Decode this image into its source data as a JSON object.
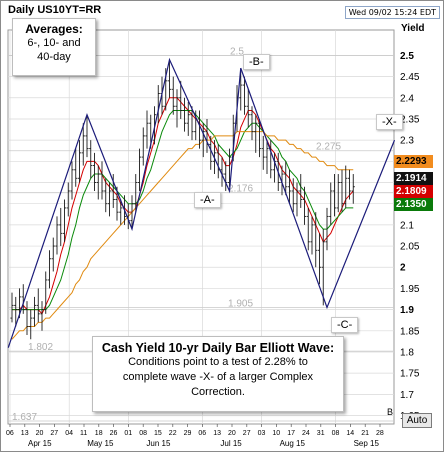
{
  "header": {
    "title": "Daily US10YT=RR",
    "date": "Wed 09/02 15:24 EDT"
  },
  "averages_box": {
    "title": "Averages:",
    "line1": "6-, 10- and",
    "line2": "40-day"
  },
  "note_box": {
    "title": "Cash Yield 10-yr Daily Bar Elliott Wave:",
    "line1": "Conditions point to a test of 2.28% to",
    "line2": "complete wave -X- of a larger Complex",
    "line3": "Correction."
  },
  "wave_labels": {
    "A": "-A-",
    "B": "-B-",
    "C": "-C-",
    "X": "-X-"
  },
  "level_labels": {
    "l25": "2.5",
    "l2275": "2.275",
    "l2176": "2.176",
    "l1905": "1.905",
    "l1802": "1.802",
    "l1637": "1.637"
  },
  "axis": {
    "y_title": "Yield",
    "auto_button": "Auto",
    "b_marker": "B"
  },
  "price_tags": [
    {
      "value": "2.2293",
      "bg": "#f28c1e",
      "fg": "#000000"
    },
    {
      "value": "2.1914",
      "bg": "#111111",
      "fg": "#ffffff"
    },
    {
      "value": "2.1809",
      "bg": "#d40000",
      "fg": "#ffffff"
    },
    {
      "value": "2.1350",
      "bg": "#0a7a0a",
      "fg": "#ffffff"
    }
  ],
  "colors": {
    "price_bars": "#1a1a1a",
    "wave_lines": "#1c1c7a",
    "ma6": "#d40000",
    "ma10": "#0a8a0a",
    "ma40": "#e08a10",
    "grid": "#d9d9d9"
  },
  "chart_data": {
    "type": "bar",
    "description_units": "10-yr yield, percent",
    "ylim": [
      1.63,
      2.56
    ],
    "y_ticks": [
      "2.5",
      "2.45",
      "2.4",
      "2.35",
      "2.3",
      "2.25",
      "2.2",
      "2.15",
      "2.1",
      "2.05",
      "2",
      "1.95",
      "1.9",
      "1.85",
      "1.8",
      "1.75",
      "1.7",
      "1.65"
    ],
    "x_day_ticks": [
      "06",
      "13",
      "20",
      "27",
      "04",
      "11",
      "18",
      "26",
      "01",
      "08",
      "15",
      "22",
      "29",
      "06",
      "13",
      "20",
      "27",
      "03",
      "10",
      "17",
      "24",
      "31",
      "08",
      "14",
      "21",
      "28"
    ],
    "x_month_labels": [
      "Apr 15",
      "May 15",
      "Jun 15",
      "Jul 15",
      "Aug 15",
      "Sep 15"
    ],
    "wave_path_points": [
      {
        "bar": -1,
        "y": 1.81
      },
      {
        "bar": 20,
        "y": 2.36
      },
      {
        "bar": 32,
        "y": 2.09
      },
      {
        "bar": 42,
        "y": 2.49
      },
      {
        "bar": 58,
        "y": 2.18
      },
      {
        "bar": 61,
        "y": 2.47
      },
      {
        "bar": 84,
        "y": 1.905
      },
      {
        "bar": 102,
        "y": 2.3
      }
    ],
    "ohlc_bars": [
      [
        1.88,
        1.94,
        1.87,
        1.91
      ],
      [
        1.91,
        1.93,
        1.86,
        1.9
      ],
      [
        1.9,
        1.95,
        1.88,
        1.93
      ],
      [
        1.93,
        1.96,
        1.89,
        1.9
      ],
      [
        1.9,
        1.92,
        1.84,
        1.86
      ],
      [
        1.86,
        1.9,
        1.83,
        1.88
      ],
      [
        1.88,
        1.93,
        1.86,
        1.91
      ],
      [
        1.91,
        1.95,
        1.87,
        1.89
      ],
      [
        1.89,
        1.92,
        1.85,
        1.9
      ],
      [
        1.9,
        1.99,
        1.89,
        1.97
      ],
      [
        1.97,
        2.04,
        1.95,
        2.02
      ],
      [
        2.02,
        2.07,
        1.99,
        2.05
      ],
      [
        2.05,
        2.12,
        2.03,
        2.1
      ],
      [
        2.1,
        2.14,
        2.05,
        2.08
      ],
      [
        2.08,
        2.16,
        2.06,
        2.14
      ],
      [
        2.14,
        2.2,
        2.12,
        2.18
      ],
      [
        2.18,
        2.25,
        2.16,
        2.23
      ],
      [
        2.23,
        2.28,
        2.19,
        2.21
      ],
      [
        2.21,
        2.3,
        2.2,
        2.27
      ],
      [
        2.27,
        2.34,
        2.24,
        2.31
      ],
      [
        2.31,
        2.36,
        2.26,
        2.28
      ],
      [
        2.28,
        2.3,
        2.21,
        2.24
      ],
      [
        2.24,
        2.27,
        2.18,
        2.2
      ],
      [
        2.2,
        2.24,
        2.16,
        2.22
      ],
      [
        2.22,
        2.25,
        2.16,
        2.18
      ],
      [
        2.18,
        2.21,
        2.13,
        2.15
      ],
      [
        2.15,
        2.2,
        2.12,
        2.18
      ],
      [
        2.18,
        2.22,
        2.14,
        2.16
      ],
      [
        2.16,
        2.19,
        2.11,
        2.13
      ],
      [
        2.13,
        2.16,
        2.1,
        2.14
      ],
      [
        2.14,
        2.17,
        2.1,
        2.12
      ],
      [
        2.12,
        2.15,
        2.09,
        2.11
      ],
      [
        2.11,
        2.17,
        2.09,
        2.15
      ],
      [
        2.15,
        2.22,
        2.13,
        2.2
      ],
      [
        2.2,
        2.28,
        2.18,
        2.26
      ],
      [
        2.26,
        2.33,
        2.24,
        2.31
      ],
      [
        2.31,
        2.37,
        2.28,
        2.34
      ],
      [
        2.34,
        2.36,
        2.28,
        2.3
      ],
      [
        2.3,
        2.38,
        2.29,
        2.36
      ],
      [
        2.36,
        2.43,
        2.34,
        2.41
      ],
      [
        2.41,
        2.45,
        2.36,
        2.38
      ],
      [
        2.38,
        2.47,
        2.37,
        2.44
      ],
      [
        2.44,
        2.49,
        2.4,
        2.42
      ],
      [
        2.42,
        2.45,
        2.36,
        2.38
      ],
      [
        2.38,
        2.42,
        2.33,
        2.4
      ],
      [
        2.4,
        2.44,
        2.35,
        2.37
      ],
      [
        2.37,
        2.4,
        2.32,
        2.34
      ],
      [
        2.34,
        2.39,
        2.31,
        2.36
      ],
      [
        2.36,
        2.38,
        2.3,
        2.32
      ],
      [
        2.32,
        2.37,
        2.3,
        2.35
      ],
      [
        2.35,
        2.37,
        2.28,
        2.3
      ],
      [
        2.3,
        2.34,
        2.26,
        2.32
      ],
      [
        2.32,
        2.35,
        2.27,
        2.29
      ],
      [
        2.29,
        2.31,
        2.23,
        2.25
      ],
      [
        2.25,
        2.3,
        2.22,
        2.27
      ],
      [
        2.27,
        2.29,
        2.21,
        2.23
      ],
      [
        2.23,
        2.26,
        2.19,
        2.22
      ],
      [
        2.22,
        2.25,
        2.18,
        2.2
      ],
      [
        2.2,
        2.28,
        2.19,
        2.26
      ],
      [
        2.26,
        2.36,
        2.25,
        2.34
      ],
      [
        2.34,
        2.43,
        2.32,
        2.4
      ],
      [
        2.4,
        2.47,
        2.37,
        2.43
      ],
      [
        2.43,
        2.45,
        2.36,
        2.38
      ],
      [
        2.38,
        2.42,
        2.33,
        2.36
      ],
      [
        2.36,
        2.38,
        2.3,
        2.32
      ],
      [
        2.32,
        2.36,
        2.27,
        2.34
      ],
      [
        2.34,
        2.35,
        2.26,
        2.28
      ],
      [
        2.28,
        2.31,
        2.23,
        2.26
      ],
      [
        2.26,
        2.3,
        2.22,
        2.28
      ],
      [
        2.28,
        2.3,
        2.21,
        2.23
      ],
      [
        2.23,
        2.27,
        2.2,
        2.25
      ],
      [
        2.25,
        2.27,
        2.18,
        2.2
      ],
      [
        2.2,
        2.24,
        2.17,
        2.22
      ],
      [
        2.22,
        2.25,
        2.17,
        2.19
      ],
      [
        2.19,
        2.23,
        2.15,
        2.18
      ],
      [
        2.18,
        2.21,
        2.13,
        2.15
      ],
      [
        2.15,
        2.2,
        2.12,
        2.18
      ],
      [
        2.18,
        2.22,
        2.14,
        2.16
      ],
      [
        2.16,
        2.19,
        2.1,
        2.12
      ],
      [
        2.12,
        2.14,
        2.04,
        2.06
      ],
      [
        2.06,
        2.12,
        2.03,
        2.1
      ],
      [
        2.1,
        2.13,
        2.0,
        2.04
      ],
      [
        2.04,
        2.08,
        1.96,
        2.0
      ],
      [
        2.0,
        2.09,
        1.91,
        2.06
      ],
      [
        2.06,
        2.14,
        2.04,
        2.12
      ],
      [
        2.12,
        2.2,
        2.1,
        2.18
      ],
      [
        2.18,
        2.22,
        2.12,
        2.14
      ],
      [
        2.14,
        2.22,
        2.13,
        2.2
      ],
      [
        2.2,
        2.23,
        2.13,
        2.15
      ],
      [
        2.15,
        2.24,
        2.14,
        2.21
      ],
      [
        2.21,
        2.23,
        2.16,
        2.18
      ],
      [
        2.18,
        2.22,
        2.15,
        2.19
      ]
    ],
    "ma_series": [
      {
        "name": "6",
        "values": [
          1.9,
          1.9,
          1.9,
          1.91,
          1.9,
          1.9,
          1.9,
          1.9,
          1.89,
          1.91,
          1.93,
          1.96,
          1.99,
          2.03,
          2.06,
          2.1,
          2.14,
          2.17,
          2.2,
          2.23,
          2.25,
          2.25,
          2.25,
          2.24,
          2.22,
          2.2,
          2.19,
          2.18,
          2.17,
          2.15,
          2.14,
          2.13,
          2.13,
          2.14,
          2.17,
          2.2,
          2.24,
          2.27,
          2.3,
          2.34,
          2.36,
          2.38,
          2.4,
          2.4,
          2.4,
          2.39,
          2.38,
          2.37,
          2.36,
          2.35,
          2.34,
          2.33,
          2.32,
          2.3,
          2.29,
          2.27,
          2.26,
          2.24,
          2.24,
          2.26,
          2.29,
          2.33,
          2.35,
          2.37,
          2.37,
          2.36,
          2.34,
          2.32,
          2.3,
          2.28,
          2.27,
          2.25,
          2.23,
          2.22,
          2.21,
          2.19,
          2.18,
          2.17,
          2.16,
          2.14,
          2.12,
          2.1,
          2.08,
          2.06,
          2.07,
          2.08,
          2.1,
          2.12,
          2.14,
          2.16,
          2.17,
          2.18
        ]
      },
      {
        "name": "10",
        "values": [
          1.9,
          1.9,
          1.9,
          1.9,
          1.9,
          1.9,
          1.9,
          1.9,
          1.9,
          1.9,
          1.91,
          1.93,
          1.95,
          1.97,
          2.0,
          2.03,
          2.07,
          2.1,
          2.14,
          2.17,
          2.19,
          2.21,
          2.22,
          2.22,
          2.22,
          2.21,
          2.2,
          2.19,
          2.18,
          2.17,
          2.16,
          2.15,
          2.15,
          2.15,
          2.16,
          2.18,
          2.21,
          2.23,
          2.26,
          2.29,
          2.32,
          2.34,
          2.36,
          2.37,
          2.37,
          2.37,
          2.37,
          2.37,
          2.37,
          2.36,
          2.35,
          2.34,
          2.33,
          2.32,
          2.31,
          2.29,
          2.28,
          2.27,
          2.26,
          2.27,
          2.28,
          2.3,
          2.32,
          2.33,
          2.34,
          2.34,
          2.33,
          2.32,
          2.31,
          2.3,
          2.29,
          2.28,
          2.26,
          2.25,
          2.23,
          2.22,
          2.21,
          2.19,
          2.18,
          2.16,
          2.14,
          2.12,
          2.1,
          2.09,
          2.09,
          2.1,
          2.11,
          2.12,
          2.13,
          2.14,
          2.14,
          2.14
        ]
      },
      {
        "name": "40",
        "values": [
          1.83,
          1.84,
          1.85,
          1.85,
          1.86,
          1.86,
          1.86,
          1.87,
          1.87,
          1.88,
          1.88,
          1.89,
          1.9,
          1.91,
          1.92,
          1.93,
          1.94,
          1.96,
          1.97,
          1.99,
          2.0,
          2.02,
          2.03,
          2.04,
          2.05,
          2.06,
          2.07,
          2.08,
          2.09,
          2.1,
          2.11,
          2.12,
          2.13,
          2.14,
          2.15,
          2.16,
          2.17,
          2.18,
          2.19,
          2.2,
          2.21,
          2.22,
          2.23,
          2.24,
          2.25,
          2.26,
          2.27,
          2.28,
          2.28,
          2.29,
          2.29,
          2.3,
          2.3,
          2.3,
          2.31,
          2.31,
          2.31,
          2.31,
          2.31,
          2.31,
          2.32,
          2.32,
          2.32,
          2.32,
          2.32,
          2.32,
          2.32,
          2.32,
          2.31,
          2.31,
          2.31,
          2.3,
          2.3,
          2.3,
          2.29,
          2.29,
          2.28,
          2.28,
          2.27,
          2.27,
          2.26,
          2.26,
          2.25,
          2.25,
          2.24,
          2.24,
          2.24,
          2.23,
          2.23,
          2.23,
          2.23,
          2.23
        ]
      }
    ]
  }
}
